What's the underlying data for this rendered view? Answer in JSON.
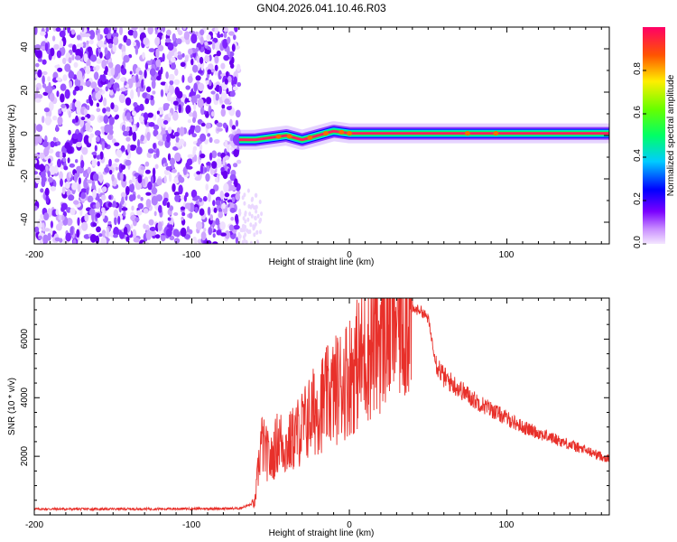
{
  "title": "GN04.2026.041.10.46.R03",
  "chart_data": [
    {
      "type": "heatmap",
      "xlabel": "Height of straight line (km)",
      "ylabel": "Frequency (Hz)",
      "xlim": [
        -200,
        165
      ],
      "ylim": [
        -50,
        50
      ],
      "xticks": [
        "-200",
        "-100",
        "0",
        "100"
      ],
      "yticks": [
        "-40",
        "-20",
        "0",
        "20",
        "40"
      ],
      "colorbar": {
        "label": "Normalized spectral amplitude",
        "range": [
          0,
          1
        ],
        "ticks": [
          "0.0",
          "0.2",
          "0.4",
          "0.6",
          "0.8"
        ]
      },
      "noise_region_x": [
        -200,
        -70
      ],
      "signal_frequency_hz": [
        [
          -70,
          -2
        ],
        [
          -60,
          -2
        ],
        [
          -50,
          -1
        ],
        [
          -40,
          0
        ],
        [
          -30,
          -2
        ],
        [
          -20,
          0
        ],
        [
          -10,
          2
        ],
        [
          0,
          1
        ],
        [
          165,
          1
        ]
      ]
    },
    {
      "type": "line",
      "xlabel": "Height of straight line (km)",
      "ylabel": "SNR (10 * v/v)",
      "xlim": [
        -200,
        165
      ],
      "ylim": [
        0,
        7400
      ],
      "xticks": [
        "-200",
        "-100",
        "0",
        "100"
      ],
      "yticks": [
        "2000",
        "4000",
        "6000"
      ],
      "series": [
        {
          "name": "SNR",
          "color": "#e8302a",
          "x": [
            -200,
            -150,
            -100,
            -70,
            -60,
            -56,
            -50,
            -45,
            -40,
            -30,
            -20,
            -10,
            0,
            10,
            20,
            30,
            40,
            45,
            50,
            55,
            60,
            70,
            80,
            90,
            100,
            110,
            120,
            130,
            140,
            150,
            160,
            165
          ],
          "y": [
            200,
            200,
            210,
            220,
            400,
            2500,
            1800,
            2600,
            2300,
            3000,
            3700,
            4200,
            4800,
            5500,
            6200,
            6800,
            7000,
            7000,
            6700,
            5200,
            4700,
            4300,
            3900,
            3600,
            3300,
            3000,
            2800,
            2600,
            2400,
            2200,
            2000,
            1900
          ]
        }
      ]
    }
  ]
}
